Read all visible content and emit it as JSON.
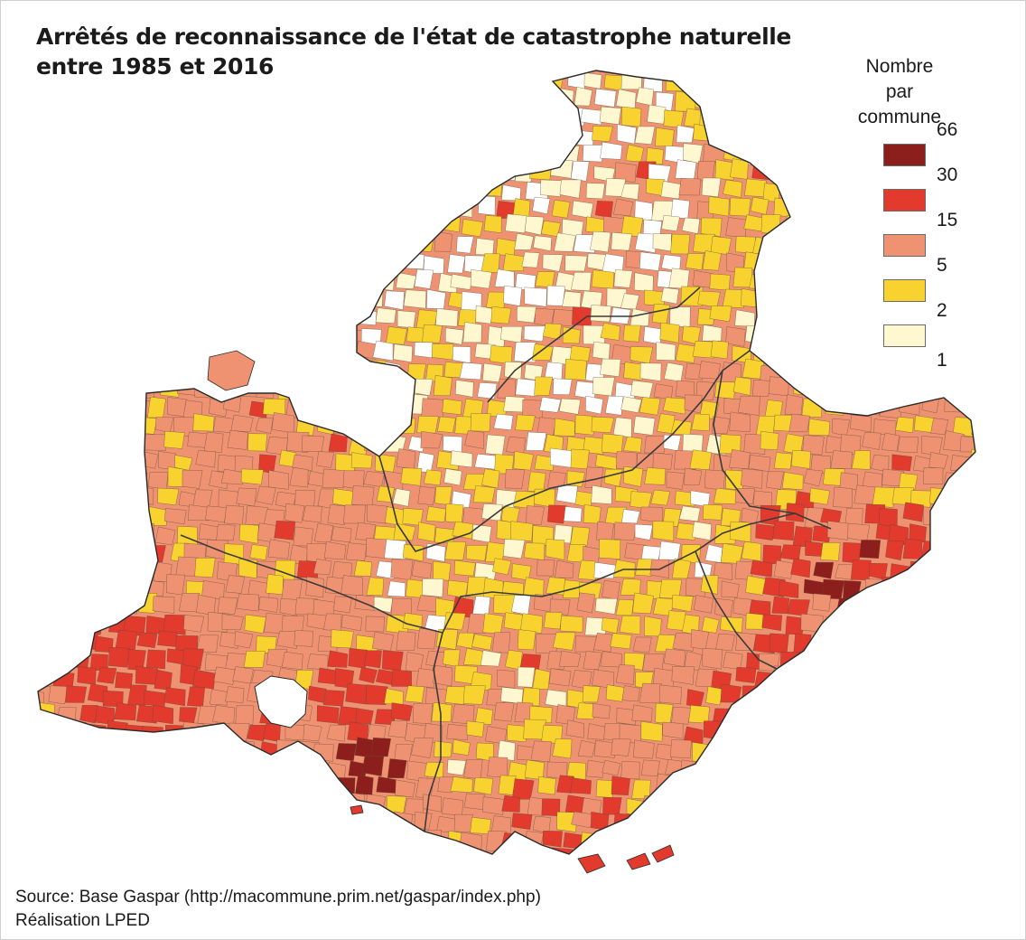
{
  "title": {
    "line1": "Arrêtés de reconnaissance de l'état de catastrophe naturelle",
    "line2": "entre 1985 et 2016"
  },
  "legend": {
    "title_line1": "Nombre",
    "title_line2": "par commune",
    "bounds": [
      "66",
      "30",
      "15",
      "5",
      "2",
      "1"
    ],
    "classes": [
      {
        "color": "#8c1f1c"
      },
      {
        "color": "#e23a2d"
      },
      {
        "color": "#ef9272"
      },
      {
        "color": "#f8d22e"
      },
      {
        "color": "#fff7cf"
      }
    ]
  },
  "map": {
    "outline_color": "#2a2a2a",
    "border_color": "#3b3b3b",
    "unrecognized_color": "#ffffff"
  },
  "footer": {
    "source": "Source: Base Gaspar (http://macommune.prim.net/gaspar/index.php)",
    "credit": "Réalisation LPED"
  }
}
